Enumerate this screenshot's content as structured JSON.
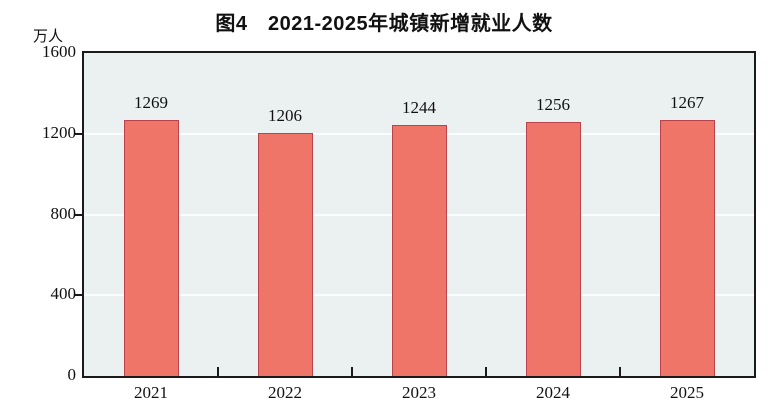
{
  "title": "图4　2021-2025年城镇新增就业人数",
  "unit_label": "万人",
  "chart_data": {
    "type": "bar",
    "title": "图4　2021-2025年城镇新增就业人数",
    "categories": [
      "2021",
      "2022",
      "2023",
      "2024",
      "2025"
    ],
    "values": [
      1269,
      1206,
      1244,
      1256,
      1267
    ],
    "xlabel": "",
    "ylabel": "万人",
    "ylim": [
      0,
      1600
    ],
    "yticks": [
      0,
      400,
      800,
      1200,
      1600
    ],
    "grid": true,
    "legend": "none",
    "data_labels_shown": true,
    "colors": {
      "bar_fill": "#ee7568",
      "bar_border": "#b8434c",
      "plot_background": "#ebf0f1",
      "gridline": "#fbfdfd",
      "axis": "#1a1a1a",
      "text": "#111111"
    }
  }
}
